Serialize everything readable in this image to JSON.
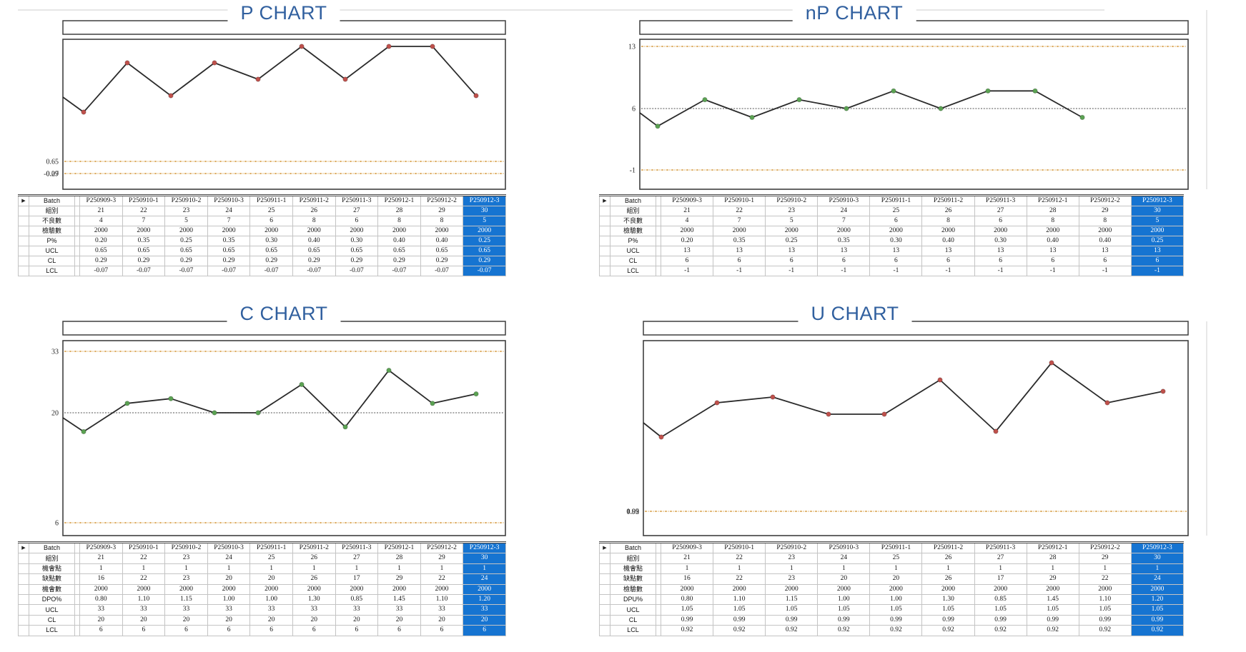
{
  "colors": {
    "title_blue": "#31609f",
    "highlight_blue": "#1674d1",
    "limit_line_orange": "#d8a14b",
    "center_line_gray": "#757575",
    "series_line": "#2b2b2b",
    "marker_red": "#bf514c",
    "marker_green": "#5ba253"
  },
  "chart_data": [
    {
      "type": "line",
      "title": "P CHART",
      "categories": [
        "P250909-3",
        "P250910-1",
        "P250910-2",
        "P250910-3",
        "P250911-1",
        "P250911-2",
        "P250911-3",
        "P250912-1",
        "P250912-2",
        "P250912-3"
      ],
      "series": [
        {
          "name": "P%",
          "values": [
            0.2,
            0.35,
            0.25,
            0.35,
            0.3,
            0.4,
            0.3,
            0.4,
            0.4,
            0.25
          ],
          "marker_color": "#bf514c"
        }
      ],
      "ucl": 0.65,
      "cl": 0.29,
      "lcl": -0.07,
      "control_line_labels": [
        [
          "0.65"
        ],
        [
          "0.29",
          "-0.07"
        ]
      ],
      "legend": "none",
      "grid": "off",
      "table": {
        "selector": "▶",
        "corner": "Batch",
        "rows": [
          {
            "label": "組別",
            "cells": [
              "21",
              "22",
              "23",
              "24",
              "25",
              "26",
              "27",
              "28",
              "29",
              "30"
            ]
          },
          {
            "label": "不良數",
            "cells": [
              "4",
              "7",
              "5",
              "7",
              "6",
              "8",
              "6",
              "8",
              "8",
              "5"
            ]
          },
          {
            "label": "檢驗數",
            "cells": [
              "2000",
              "2000",
              "2000",
              "2000",
              "2000",
              "2000",
              "2000",
              "2000",
              "2000",
              "2000"
            ]
          },
          {
            "label": "P%",
            "cells": [
              "0.20",
              "0.35",
              "0.25",
              "0.35",
              "0.30",
              "0.40",
              "0.30",
              "0.40",
              "0.40",
              "0.25"
            ]
          },
          {
            "label": "UCL",
            "cells": [
              "0.65",
              "0.65",
              "0.65",
              "0.65",
              "0.65",
              "0.65",
              "0.65",
              "0.65",
              "0.65",
              "0.65"
            ]
          },
          {
            "label": "CL",
            "cells": [
              "0.29",
              "0.29",
              "0.29",
              "0.29",
              "0.29",
              "0.29",
              "0.29",
              "0.29",
              "0.29",
              "0.29"
            ]
          },
          {
            "label": "LCL",
            "cells": [
              "-0.07",
              "-0.07",
              "-0.07",
              "-0.07",
              "-0.07",
              "-0.07",
              "-0.07",
              "-0.07",
              "-0.07",
              "-0.07"
            ]
          }
        ]
      }
    },
    {
      "type": "line",
      "title": "nP CHART",
      "categories": [
        "P250909-3",
        "P250910-1",
        "P250910-2",
        "P250910-3",
        "P250911-1",
        "P250911-2",
        "P250911-3",
        "P250912-1",
        "P250912-2",
        "P250912-3"
      ],
      "series": [
        {
          "name": "不良數",
          "values": [
            4,
            7,
            5,
            7,
            6,
            8,
            6,
            8,
            8,
            5
          ],
          "marker_color": "#5ba253"
        }
      ],
      "ucl": 13,
      "cl": 6,
      "lcl": -1,
      "control_line_labels": [
        [
          "13"
        ],
        [
          "6"
        ],
        [
          "-1"
        ]
      ],
      "legend": "none",
      "grid": "off",
      "table": {
        "selector": "▶",
        "corner": "Batch",
        "rows": [
          {
            "label": "組別",
            "cells": [
              "21",
              "22",
              "23",
              "24",
              "25",
              "26",
              "27",
              "28",
              "29",
              "30"
            ]
          },
          {
            "label": "不良數",
            "cells": [
              "4",
              "7",
              "5",
              "7",
              "6",
              "8",
              "6",
              "8",
              "8",
              "5"
            ]
          },
          {
            "label": "檢驗數",
            "cells": [
              "2000",
              "2000",
              "2000",
              "2000",
              "2000",
              "2000",
              "2000",
              "2000",
              "2000",
              "2000"
            ]
          },
          {
            "label": "P%",
            "cells": [
              "0.20",
              "0.35",
              "0.25",
              "0.35",
              "0.30",
              "0.40",
              "0.30",
              "0.40",
              "0.40",
              "0.25"
            ]
          },
          {
            "label": "UCL",
            "cells": [
              "13",
              "13",
              "13",
              "13",
              "13",
              "13",
              "13",
              "13",
              "13",
              "13"
            ]
          },
          {
            "label": "CL",
            "cells": [
              "6",
              "6",
              "6",
              "6",
              "6",
              "6",
              "6",
              "6",
              "6",
              "6"
            ]
          },
          {
            "label": "LCL",
            "cells": [
              "-1",
              "-1",
              "-1",
              "-1",
              "-1",
              "-1",
              "-1",
              "-1",
              "-1",
              "-1"
            ]
          }
        ]
      }
    },
    {
      "type": "line",
      "title": "C CHART",
      "categories": [
        "P250909-3",
        "P250910-1",
        "P250910-2",
        "P250910-3",
        "P250911-1",
        "P250911-2",
        "P250911-3",
        "P250912-1",
        "P250912-2",
        "P250912-3"
      ],
      "series": [
        {
          "name": "缺點數",
          "values": [
            16,
            22,
            23,
            20,
            20,
            26,
            17,
            29,
            22,
            24
          ],
          "marker_color": "#5ba253"
        }
      ],
      "ucl": 33,
      "cl": 20,
      "lcl": 6,
      "control_line_labels": [
        [
          "33"
        ],
        [
          "20"
        ],
        [
          "6"
        ]
      ],
      "legend": "none",
      "grid": "off",
      "table": {
        "selector": "▶",
        "corner": "Batch",
        "rows": [
          {
            "label": "組別",
            "cells": [
              "21",
              "22",
              "23",
              "24",
              "25",
              "26",
              "27",
              "28",
              "29",
              "30"
            ]
          },
          {
            "label": "機會點",
            "cells": [
              "1",
              "1",
              "1",
              "1",
              "1",
              "1",
              "1",
              "1",
              "1",
              "1"
            ]
          },
          {
            "label": "缺點數",
            "cells": [
              "16",
              "22",
              "23",
              "20",
              "20",
              "26",
              "17",
              "29",
              "22",
              "24"
            ]
          },
          {
            "label": "機會數",
            "cells": [
              "2000",
              "2000",
              "2000",
              "2000",
              "2000",
              "2000",
              "2000",
              "2000",
              "2000",
              "2000"
            ]
          },
          {
            "label": "DPO%",
            "cells": [
              "0.80",
              "1.10",
              "1.15",
              "1.00",
              "1.00",
              "1.30",
              "0.85",
              "1.45",
              "1.10",
              "1.20"
            ]
          },
          {
            "label": "UCL",
            "cells": [
              "33",
              "33",
              "33",
              "33",
              "33",
              "33",
              "33",
              "33",
              "33",
              "33"
            ]
          },
          {
            "label": "CL",
            "cells": [
              "20",
              "20",
              "20",
              "20",
              "20",
              "20",
              "20",
              "20",
              "20",
              "20"
            ]
          },
          {
            "label": "LCL",
            "cells": [
              "6",
              "6",
              "6",
              "6",
              "6",
              "6",
              "6",
              "6",
              "6",
              "6"
            ]
          }
        ]
      }
    },
    {
      "type": "line",
      "title": "U CHART",
      "categories": [
        "P250909-3",
        "P250910-1",
        "P250910-2",
        "P250910-3",
        "P250911-1",
        "P250911-2",
        "P250911-3",
        "P250912-1",
        "P250912-2",
        "P250912-3"
      ],
      "series": [
        {
          "name": "DPU%",
          "values": [
            0.8,
            1.1,
            1.15,
            1.0,
            1.0,
            1.3,
            0.85,
            1.45,
            1.1,
            1.2
          ],
          "marker_color": "#bf514c"
        }
      ],
      "ucl": 1.05,
      "cl": 0.99,
      "lcl": 0.92,
      "control_line_labels": [
        [
          "1.05",
          "0.99",
          "0.92"
        ]
      ],
      "legend": "none",
      "grid": "off",
      "table": {
        "selector": "▶",
        "corner": "Batch",
        "rows": [
          {
            "label": "組別",
            "cells": [
              "21",
              "22",
              "23",
              "24",
              "25",
              "26",
              "27",
              "28",
              "29",
              "30"
            ]
          },
          {
            "label": "機會點",
            "cells": [
              "1",
              "1",
              "1",
              "1",
              "1",
              "1",
              "1",
              "1",
              "1",
              "1"
            ]
          },
          {
            "label": "缺點數",
            "cells": [
              "16",
              "22",
              "23",
              "20",
              "20",
              "26",
              "17",
              "29",
              "22",
              "24"
            ]
          },
          {
            "label": "檢驗數",
            "cells": [
              "2000",
              "2000",
              "2000",
              "2000",
              "2000",
              "2000",
              "2000",
              "2000",
              "2000",
              "2000"
            ]
          },
          {
            "label": "DPU%",
            "cells": [
              "0.80",
              "1.10",
              "1.15",
              "1.00",
              "1.00",
              "1.30",
              "0.85",
              "1.45",
              "1.10",
              "1.20"
            ]
          },
          {
            "label": "UCL",
            "cells": [
              "1.05",
              "1.05",
              "1.05",
              "1.05",
              "1.05",
              "1.05",
              "1.05",
              "1.05",
              "1.05",
              "1.05"
            ]
          },
          {
            "label": "CL",
            "cells": [
              "0.99",
              "0.99",
              "0.99",
              "0.99",
              "0.99",
              "0.99",
              "0.99",
              "0.99",
              "0.99",
              "0.99"
            ]
          },
          {
            "label": "LCL",
            "cells": [
              "0.92",
              "0.92",
              "0.92",
              "0.92",
              "0.92",
              "0.92",
              "0.92",
              "0.92",
              "0.92",
              "0.92"
            ]
          }
        ]
      }
    }
  ]
}
